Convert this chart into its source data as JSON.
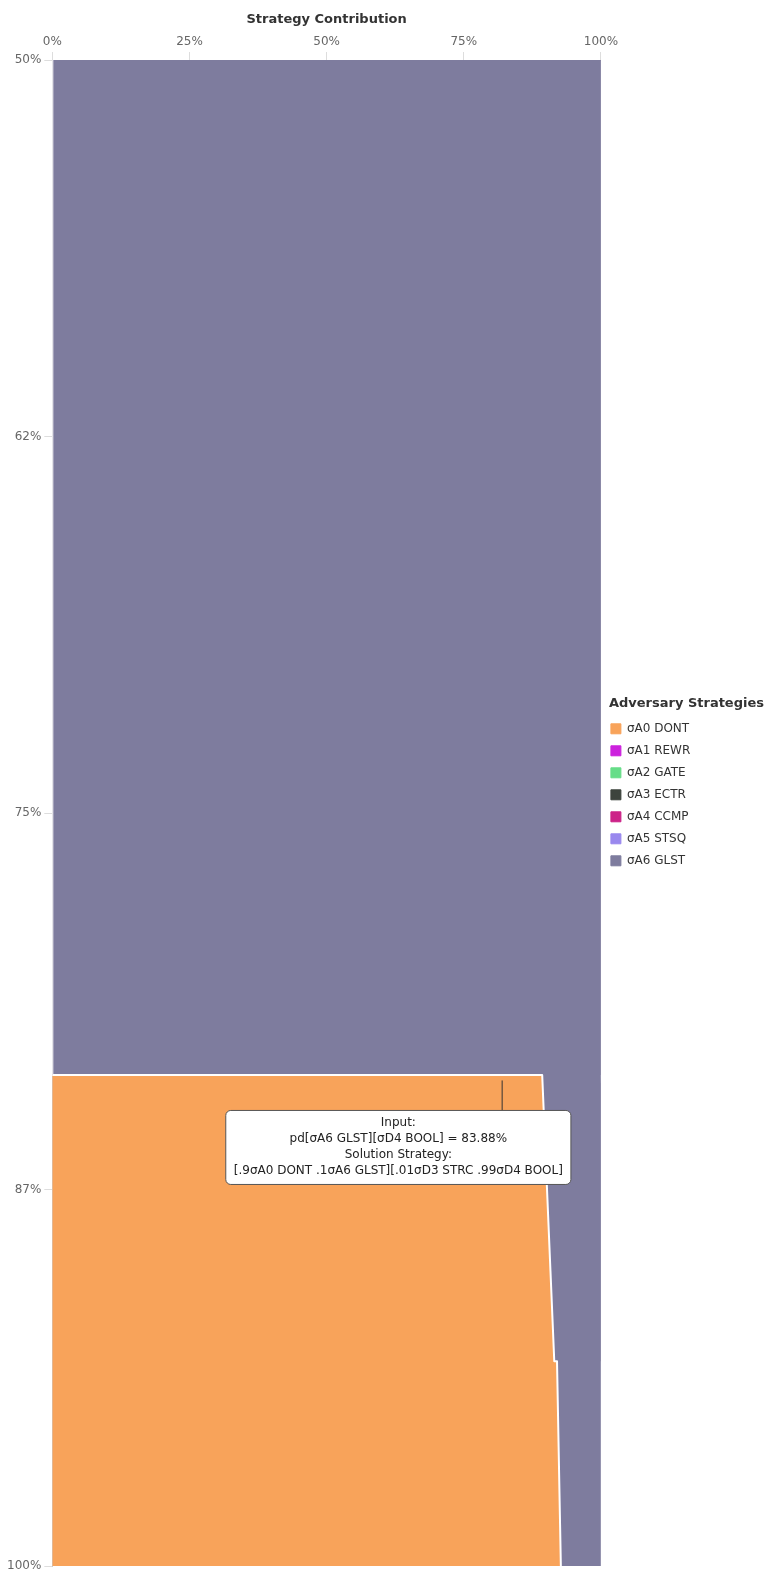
{
  "chart_data": {
    "type": "area",
    "stacked": true,
    "orientation": "horizontal",
    "xlabel": "Strategy Contribution",
    "legend_title": "Adversary Strategies",
    "legend": "right",
    "grid": false,
    "x": [
      50,
      83.7,
      83.7,
      93.2,
      93.2,
      100
    ],
    "ylim": [
      100,
      50
    ],
    "yticks": [
      {
        "value": 50,
        "label": "50%"
      },
      {
        "value": 62.5,
        "label": "62%"
      },
      {
        "value": 75,
        "label": "75%"
      },
      {
        "value": 87.5,
        "label": "87%"
      },
      {
        "value": 100,
        "label": "100%"
      }
    ],
    "xlim": [
      0,
      100
    ],
    "xticks": [
      {
        "value": 0,
        "label": "0%"
      },
      {
        "value": 25,
        "label": "25%"
      },
      {
        "value": 50,
        "label": "50%"
      },
      {
        "value": 75,
        "label": "75%"
      },
      {
        "value": 100,
        "label": "100%"
      }
    ],
    "series": [
      {
        "name": "σA0 DONT",
        "color": "#f8a35a",
        "values": [
          0,
          0,
          89.3,
          91.5,
          92,
          92.7
        ]
      },
      {
        "name": "σA1 REWR",
        "color": "#cc22dd",
        "values": [
          null,
          null,
          null,
          null,
          null,
          null
        ]
      },
      {
        "name": "σA2 GATE",
        "color": "#66dd88",
        "values": [
          null,
          null,
          null,
          null,
          null,
          null
        ]
      },
      {
        "name": "σA3 ECTR",
        "color": "#3d443d",
        "values": [
          null,
          null,
          null,
          null,
          null,
          null
        ]
      },
      {
        "name": "σA4 CCMP",
        "color": "#cc2288",
        "values": [
          null,
          null,
          null,
          null,
          null,
          null
        ]
      },
      {
        "name": "σA5 STSQ",
        "color": "#9988ee",
        "values": [
          null,
          null,
          null,
          null,
          null,
          null
        ]
      },
      {
        "name": "σA6 GLST",
        "color": "#7e7c9e",
        "values": [
          100,
          100,
          10.7,
          8.5,
          8,
          7.3
        ]
      }
    ],
    "annotations": [
      {
        "text": "Input:\npd[σA6 GLST][σD4 BOOL] = 83.88%\nSolution Strategy:\n[.9σA0 DONT .1σA6 GLST][.01σD3 STRC .99σD4 BOOL]",
        "x": 82,
        "y": 83.88
      }
    ]
  }
}
